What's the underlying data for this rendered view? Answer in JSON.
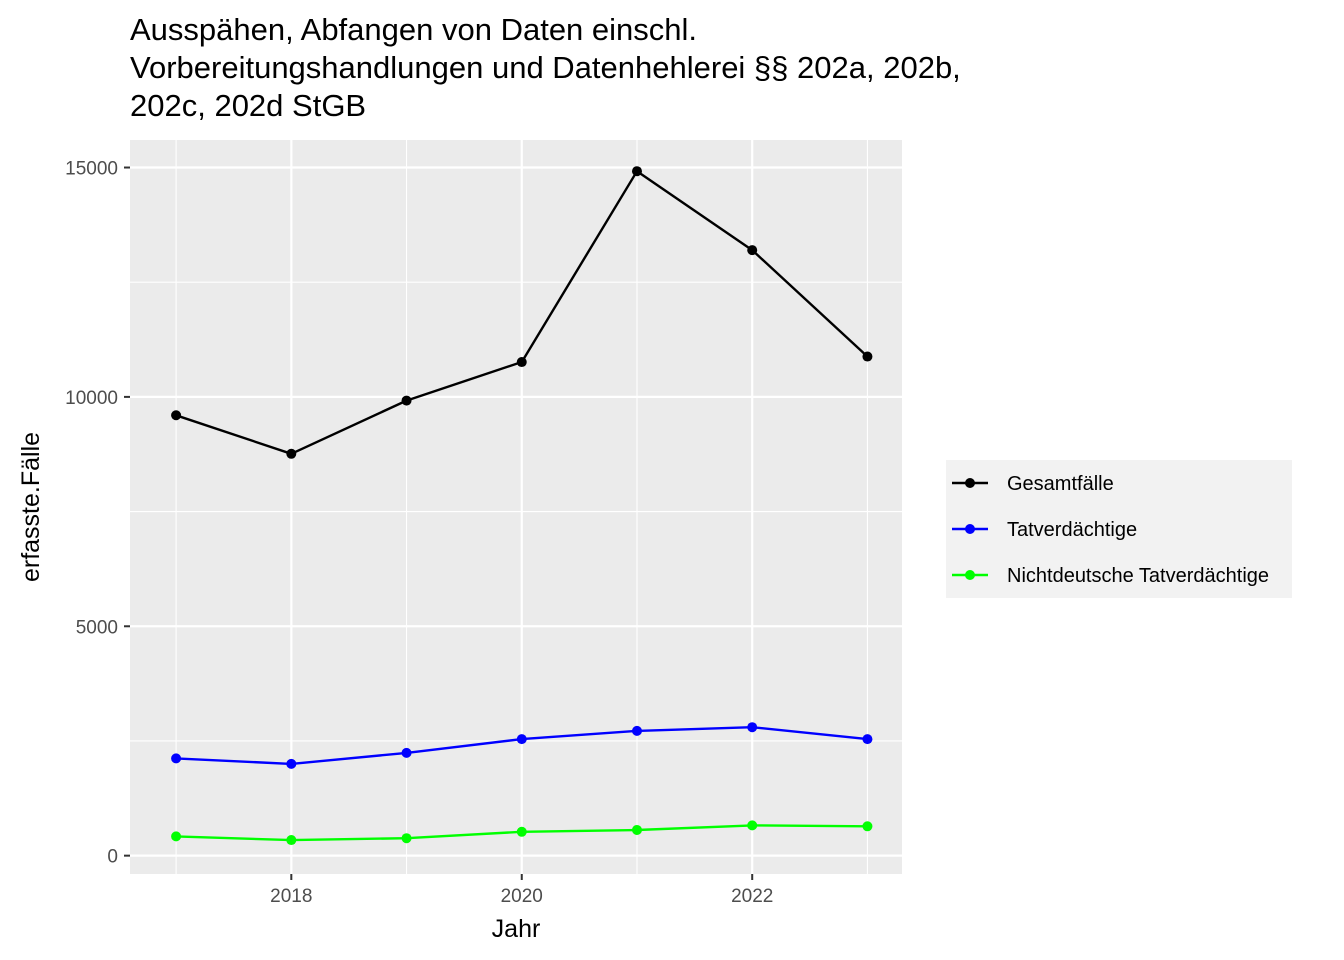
{
  "chart_data": {
    "type": "line",
    "title": "Ausspähen, Abfangen von Daten einschl. Vorbereitungshandlungen und Datenhehlerei §§ 202a, 202b, 202c, 202d StGB",
    "title_lines": [
      "Ausspähen, Abfangen von Daten einschl.",
      "Vorbereitungshandlungen und Datenhehlerei §§ 202a, 202b,",
      "202c, 202d StGB"
    ],
    "xlabel": "Jahr",
    "ylabel": "erfasste.Fälle",
    "x": [
      2017,
      2018,
      2019,
      2020,
      2021,
      2022,
      2023
    ],
    "xlim": [
      2016.6,
      2023.3
    ],
    "ylim": [
      -400,
      15600
    ],
    "xticks": [
      2018,
      2020,
      2022
    ],
    "yticks": [
      0,
      5000,
      10000,
      15000
    ],
    "grid": true,
    "legend_position": "right",
    "series": [
      {
        "name": "Gesamtfälle",
        "color": "#000000",
        "values": [
          9600,
          8760,
          9920,
          10760,
          14920,
          13200,
          10880
        ]
      },
      {
        "name": "Tatverdächtige",
        "color": "#0000ff",
        "values": [
          2120,
          2000,
          2240,
          2540,
          2720,
          2800,
          2540
        ]
      },
      {
        "name": "Nichtdeutsche Tatverdächtige",
        "color": "#00ff00",
        "values": [
          420,
          340,
          380,
          520,
          560,
          660,
          640
        ]
      }
    ]
  }
}
